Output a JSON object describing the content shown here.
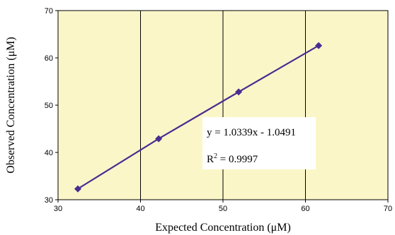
{
  "chart_data": {
    "type": "scatter",
    "xlabel": "Expected Concentration (μM)",
    "ylabel": "Observed Concentration (μM)",
    "xlim": [
      30,
      70
    ],
    "ylim": [
      30,
      70
    ],
    "x_ticks": [
      "30",
      "40",
      "50",
      "60",
      "70"
    ],
    "y_ticks": [
      "30",
      "40",
      "50",
      "60",
      "70"
    ],
    "grid": "vertical major lines only",
    "plot_background": "#fbf6c8",
    "series": [
      {
        "color": "#4b2c91",
        "marker": "diamond",
        "points": [
          {
            "x": 32.4,
            "y": 32.3
          },
          {
            "x": 42.2,
            "y": 42.9
          },
          {
            "x": 51.9,
            "y": 52.8
          },
          {
            "x": 61.6,
            "y": 62.6
          }
        ]
      }
    ],
    "trendline": {
      "type": "linear",
      "equation": "y = 1.0339x - 1.0491",
      "r2_prefix": "R",
      "r2_exp": "2",
      "r2_value": " = 0.9997"
    }
  }
}
